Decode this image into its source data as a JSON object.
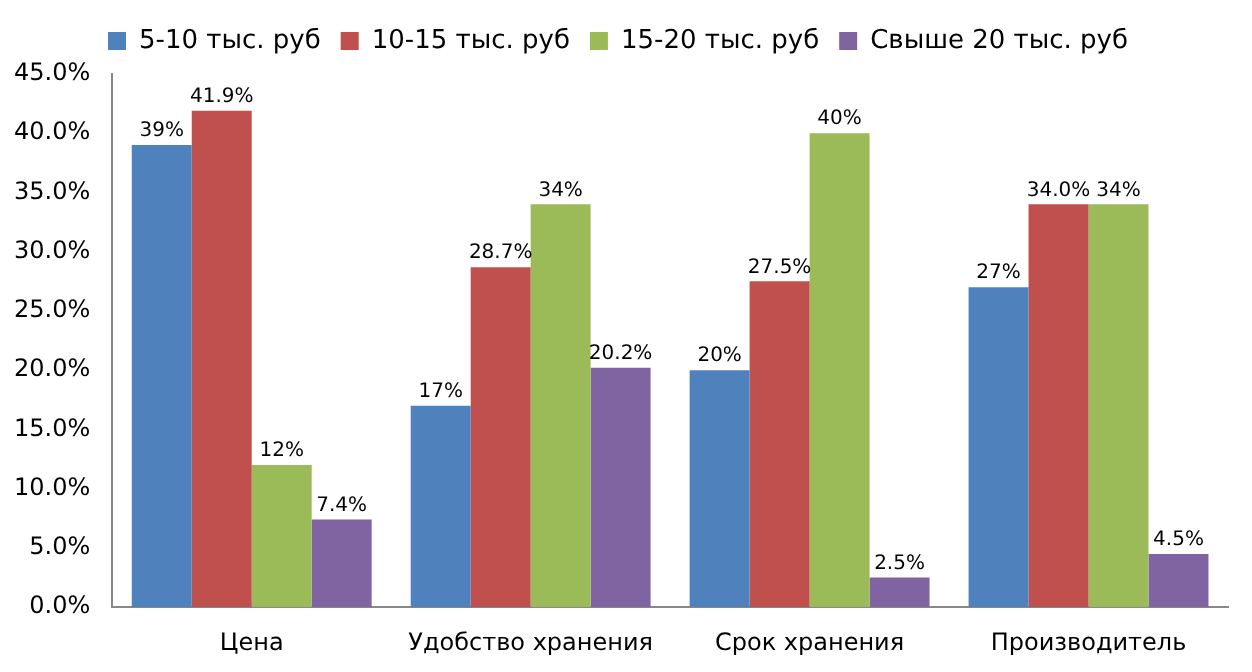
{
  "chart_data": {
    "type": "bar",
    "categories": [
      "Цена",
      "Удобство хранения",
      "Срок хранения",
      "Производитель"
    ],
    "series": [
      {
        "name": "5-10 тыс. руб",
        "color": "#4f81bd",
        "values": [
          39,
          17,
          20,
          27
        ],
        "value_labels": [
          "39%",
          "17%",
          "20%",
          "27%"
        ]
      },
      {
        "name": "10-15 тыс. руб",
        "color": "#c0504d",
        "values": [
          41.9,
          28.7,
          27.5,
          34.0
        ],
        "value_labels": [
          "41.9%",
          "28.7%",
          "27.5%",
          "34.0%"
        ]
      },
      {
        "name": "15-20 тыс. руб",
        "color": "#9bbb59",
        "values": [
          12,
          34,
          40,
          34
        ],
        "value_labels": [
          "12%",
          "34%",
          "40%",
          "34%"
        ]
      },
      {
        "name": "Свыше 20 тыс. руб",
        "color": "#8064a2",
        "values": [
          7.4,
          20.2,
          2.5,
          4.5
        ],
        "value_labels": [
          "7.4%",
          "20.2%",
          "2.5%",
          "4.5%"
        ]
      }
    ],
    "ylim": [
      0,
      45
    ],
    "yticks": [
      {
        "value": 0,
        "label": "0.0%"
      },
      {
        "value": 5,
        "label": "5.0%"
      },
      {
        "value": 10,
        "label": "10.0%"
      },
      {
        "value": 15,
        "label": "15.0%"
      },
      {
        "value": 20,
        "label": "20.0%"
      },
      {
        "value": 25,
        "label": "25.0%"
      },
      {
        "value": 30,
        "label": "30.0%"
      },
      {
        "value": 35,
        "label": "35.0%"
      },
      {
        "value": 40,
        "label": "40.0%"
      },
      {
        "value": 45,
        "label": "45.0%"
      }
    ],
    "grid": false,
    "legend": "top"
  }
}
